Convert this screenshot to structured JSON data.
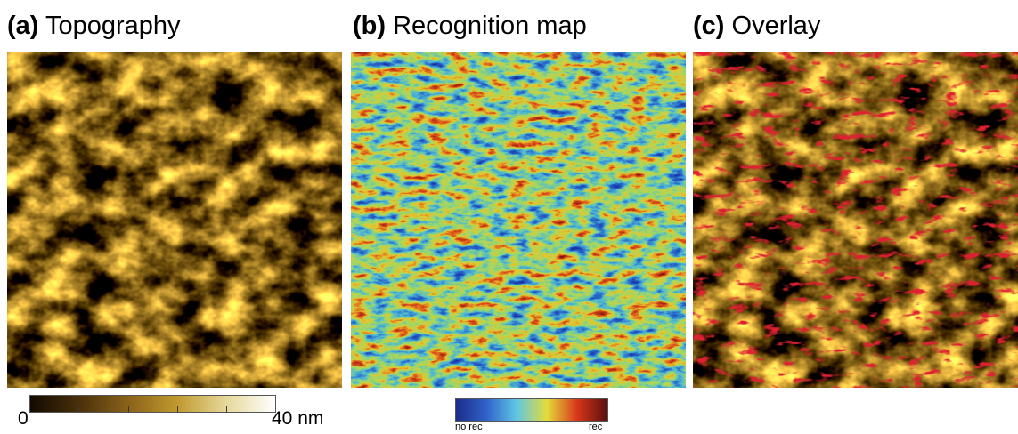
{
  "panels": [
    {
      "letter": "(a)",
      "title": "Topography"
    },
    {
      "letter": "(b)",
      "title": "Recognition map"
    },
    {
      "letter": "(c)",
      "title": "Overlay"
    }
  ],
  "colorbars": {
    "topography": {
      "min_label": "0",
      "max_label": "40 nm",
      "colors": [
        "#120a02",
        "#4a300a",
        "#8a621a",
        "#c0992e",
        "#e6d89a",
        "#ffffff"
      ]
    },
    "recognition": {
      "min_label": "no rec",
      "max_label": "rec",
      "colors": [
        "#1c2c8a",
        "#2f62c9",
        "#5fc6e4",
        "#e4dc3a",
        "#d8361b",
        "#5a0f0f"
      ]
    }
  },
  "overlay_color": "#dd2230"
}
